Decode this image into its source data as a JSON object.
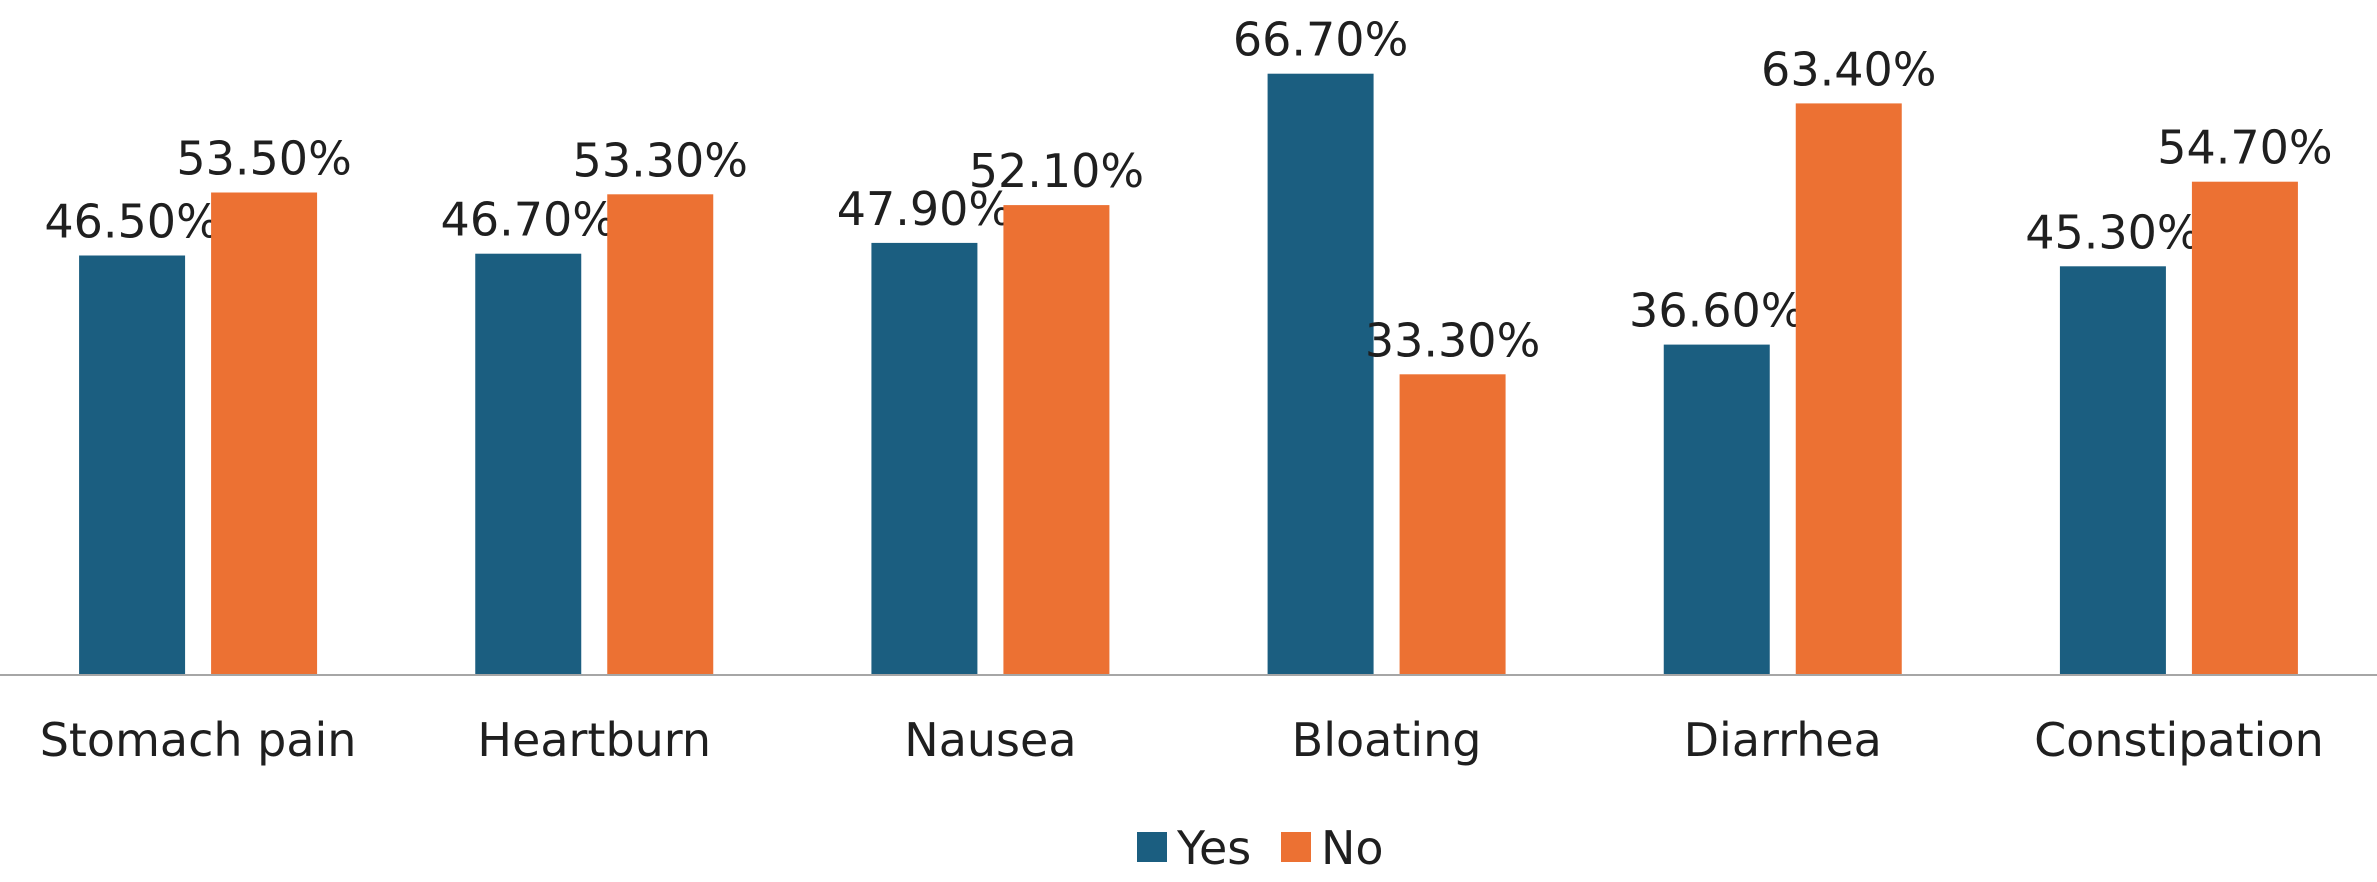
{
  "colors": {
    "yes": "#1b5e80",
    "no": "#ec7133",
    "axis": "#a6a6a6",
    "text": "#1f1f1f"
  },
  "chart_data": {
    "type": "bar",
    "categories": [
      "Stomach pain",
      "Heartburn",
      "Nausea",
      "Bloating",
      "Diarrhea",
      "Constipation"
    ],
    "series": [
      {
        "name": "Yes",
        "values": [
          46.5,
          46.7,
          47.9,
          66.7,
          36.6,
          45.3
        ],
        "labels": [
          "46.50%",
          "46.70%",
          "47.90%",
          "66.70%",
          "36.60%",
          "45.30%"
        ]
      },
      {
        "name": "No",
        "values": [
          53.5,
          53.3,
          52.1,
          33.3,
          63.4,
          54.7
        ],
        "labels": [
          "53.50%",
          "53.30%",
          "52.10%",
          "33.30%",
          "63.40%",
          "54.70%"
        ]
      }
    ],
    "ylim": [
      0,
      100
    ],
    "grid": false,
    "legend": "bottom-center"
  }
}
